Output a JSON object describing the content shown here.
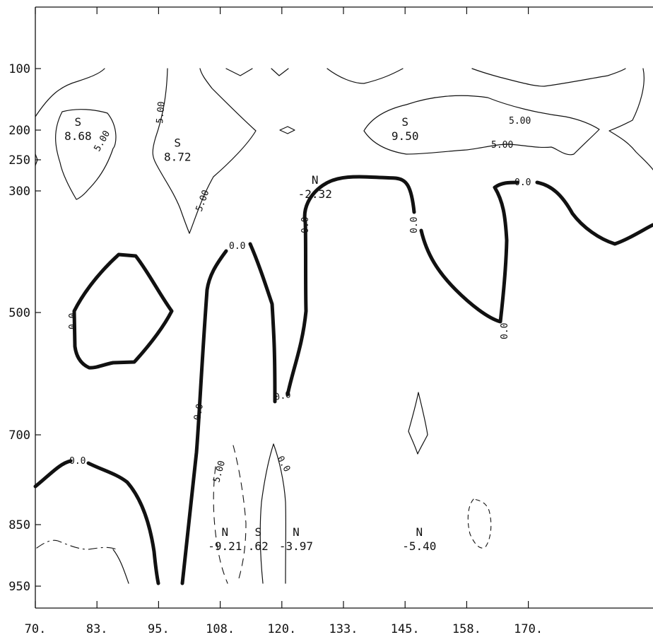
{
  "chart_data": {
    "type": "contour",
    "title": "",
    "xlabel": "",
    "ylabel": "",
    "x_ticks": [
      "70.",
      "83.",
      "95.",
      "108.",
      "120.",
      "133.",
      "145.",
      "158.",
      "170."
    ],
    "y_ticks": [
      "100",
      "200",
      "250",
      "300",
      "500",
      "700",
      "850",
      "950"
    ],
    "xlim": [
      70,
      183
    ],
    "ylim_pressure": [
      0,
      1000
    ],
    "y_axis_scale": "pressure (top = low, bottom = high)",
    "grid": false,
    "legend": "none",
    "contour_values": [
      {
        "level": "5.00",
        "style": "thin solid"
      },
      {
        "level": "0.0",
        "style": "thick solid"
      },
      {
        "level": "-5.00",
        "style": "thin dashed"
      }
    ],
    "extrema": [
      {
        "type": "S",
        "value": "8.68",
        "x": 79,
        "p": 205
      },
      {
        "type": "S",
        "value": "8.72",
        "x": 100,
        "p": 240
      },
      {
        "type": "N",
        "value": "-2.32",
        "x": 129,
        "p": 300
      },
      {
        "type": "S",
        "value": "9.50",
        "x": 148,
        "p": 205
      },
      {
        "type": "N",
        "value": "-9.21",
        "x": 110,
        "p": 880
      },
      {
        "type": "S",
        "value": ".62",
        "x": 117,
        "p": 880
      },
      {
        "type": "N",
        "value": "-3.97",
        "x": 125,
        "p": 880
      },
      {
        "type": "N",
        "value": "-5.40",
        "x": 151,
        "p": 880
      }
    ]
  }
}
